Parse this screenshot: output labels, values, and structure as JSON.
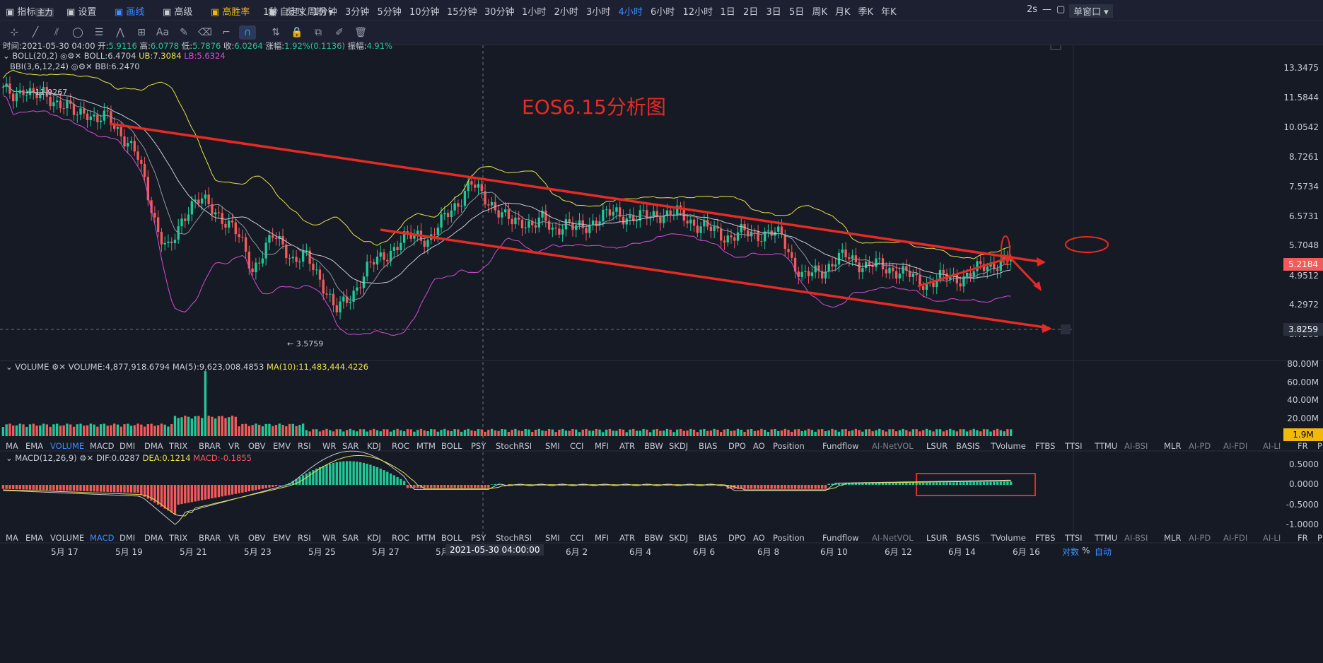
{
  "toolbar": {
    "items": [
      {
        "label": "指标",
        "badge": "主力"
      },
      {
        "label": "设置"
      },
      {
        "label": "画线",
        "active": true
      },
      {
        "label": "高级"
      },
      {
        "label": "高胜率",
        "gold": true
      },
      {
        "label": "自定义周期 ▾"
      }
    ],
    "periods": [
      "1秒",
      "分时",
      "1分钟",
      "3分钟",
      "5分钟",
      "10分钟",
      "15分钟",
      "30分钟",
      "1小时",
      "2小时",
      "3小时",
      "4小时",
      "6小时",
      "12小时",
      "1日",
      "2日",
      "3日",
      "5日",
      "周K",
      "月K",
      "季K",
      "年K"
    ],
    "active_period": "4小时",
    "right": {
      "refresh": "2s",
      "window": "单窗口 ▾"
    }
  },
  "drawing_tools": [
    "crosshair",
    "trendline",
    "fib",
    "ellipse",
    "parallel",
    "wave",
    "measure",
    "text",
    "brush",
    "eraser",
    "ruler",
    "magnet",
    "compare",
    "lock",
    "copy",
    "edit",
    "trash"
  ],
  "ohlc": {
    "time_label": "时间:",
    "time": "2021-05-30 04:00",
    "open_label": "开:",
    "open": "5.9116",
    "high_label": "高:",
    "high": "6.0778",
    "low_label": "低:",
    "low": "5.7876",
    "close_label": "收:",
    "close": "6.0264",
    "chg_label": "涨幅:",
    "chg": "1.92%(0.1136)",
    "amp_label": "振幅:",
    "amp": "4.91%"
  },
  "indicators": {
    "boll": {
      "name": "BOLL(20,2)",
      "mid_label": "BOLL:",
      "mid": "6.4704",
      "ub_label": "UB:",
      "ub": "7.3084",
      "lb_label": "LB:",
      "lb": "5.6324"
    },
    "bbi": {
      "name": "BBI(3,6,12,24)",
      "label": "BBI:",
      "value": "6.2470"
    },
    "volume": {
      "name": "VOLUME",
      "label": "VOLUME:",
      "value": "4,877,918.6794",
      "ma5_label": "MA(5):",
      "ma5": "9,623,008.4853",
      "ma10_label": "MA(10):",
      "ma10": "11,483,444.4226"
    },
    "macd": {
      "name": "MACD(12,26,9)",
      "dif_label": "DIF:",
      "dif": "0.0287",
      "dea_label": "DEA:",
      "dea": "0.1214",
      "macd_label": "MACD:",
      "macd": "-0.1855"
    }
  },
  "indicator_tabs": [
    "MA",
    "EMA",
    "VOLUME",
    "MACD",
    "DMI",
    "DMA",
    "TRIX",
    "BRAR",
    "VR",
    "OBV",
    "EMV",
    "RSI",
    "WR",
    "SAR",
    "KDJ",
    "ROC",
    "MTM",
    "BOLL",
    "PSY",
    "StochRSI",
    "SMI",
    "CCI",
    "MFI",
    "ATR",
    "BBW",
    "SKDJ",
    "BIAS",
    "DPO",
    "AO",
    "Position",
    "Fundflow",
    "AI-NetVOL",
    "LSUR",
    "BASIS",
    "TVolume",
    "FTBS",
    "TTSI",
    "TTMU",
    "AI-BSI",
    "MLR",
    "AI-PD",
    "AI-FDI",
    "AI-LI",
    "FR",
    "PFR",
    "AI-BST"
  ],
  "indicator_tabs_dim": [
    "AI-NetVOL",
    "AI-BSI",
    "AI-PD",
    "AI-FDI",
    "AI-LI",
    "AI-BST"
  ],
  "price_axis": [
    "13.3475",
    "11.5844",
    "10.0542",
    "8.7261",
    "7.5734",
    "6.5731",
    "5.7048",
    "4.9512",
    "4.2972",
    "3.7296"
  ],
  "price_tags": {
    "current": "5.2184",
    "crosshair": "3.8259"
  },
  "volume_axis": [
    "80.00M",
    "60.00M",
    "40.00M",
    "20.00M"
  ],
  "volume_tag": "1.9M",
  "macd_axis": [
    "0.5000",
    "0.0000",
    "-0.5000",
    "-1.0000"
  ],
  "date_axis": [
    "5月 17",
    "5月 19",
    "5月 21",
    "5月 23",
    "5月 25",
    "5月 27",
    "5月",
    "6月 2",
    "6月 4",
    "6月 6",
    "6月 8",
    "6月 10",
    "6月 12",
    "6月 14",
    "6月 16"
  ],
  "crosshair_time": "2021-05-30 04:00:00",
  "bottom_right": {
    "log": "对数",
    "pct": "%",
    "auto": "自动"
  },
  "marks": {
    "high": "11.9267",
    "low": "3.5759"
  },
  "annotation": {
    "title": "EOS6.15分析图"
  },
  "colors": {
    "up": "#20c997",
    "down": "#f25b5b",
    "bg": "#161a25",
    "annotation": "#e52b23",
    "accent": "#3f8cff",
    "ub": "#e8e04a",
    "lb": "#d14fd1",
    "mid": "#c7cbd4"
  },
  "chart_data": {
    "type": "candlestick",
    "ylim": [
      3.5,
      14.0
    ],
    "log_scale": true,
    "close_path": [
      11.4,
      11.2,
      11.6,
      11.0,
      11.3,
      10.9,
      10.6,
      10.2,
      10.5,
      9.9,
      10.1,
      9.6,
      9.0,
      8.3,
      7.0,
      5.9,
      5.4,
      6.1,
      6.8,
      6.9,
      6.6,
      6.4,
      6.1,
      5.6,
      5.0,
      5.4,
      5.8,
      5.6,
      5.2,
      5.3,
      5.0,
      4.6,
      4.1,
      4.3,
      4.6,
      5.0,
      5.2,
      5.4,
      5.6,
      5.8,
      5.9,
      5.7,
      6.1,
      6.6,
      6.9,
      7.4,
      7.1,
      6.8,
      6.4,
      6.2,
      6.3,
      6.1,
      6.3,
      6.0,
      6.2,
      6.0,
      6.1,
      6.3,
      6.4,
      6.5,
      6.4,
      6.3,
      6.4,
      6.5,
      6.4,
      6.5,
      6.3,
      6.1,
      6.0,
      5.9,
      5.8,
      5.9,
      5.9,
      5.9,
      5.9,
      5.8,
      5.2,
      4.8,
      4.9,
      5.0,
      5.2,
      5.3,
      5.2,
      5.1,
      5.1,
      5.0,
      5.0,
      4.9,
      4.7,
      4.7,
      4.8,
      4.8,
      4.8,
      4.9,
      5.0,
      5.1,
      5.2,
      5.2
    ]
  }
}
